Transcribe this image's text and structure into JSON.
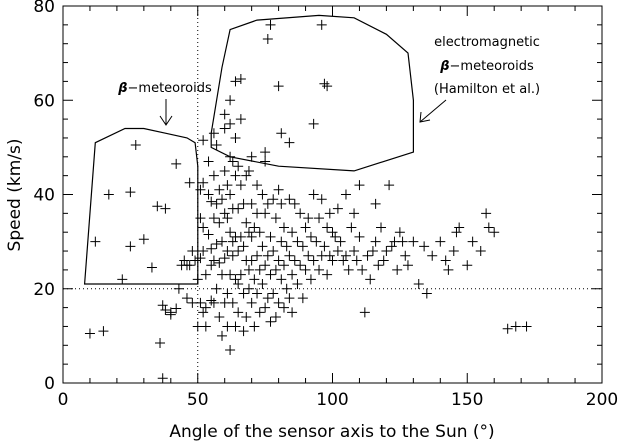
{
  "chart_data": {
    "type": "scatter",
    "xlabel": "Angle of the sensor axis to the Sun (°)",
    "ylabel": "Speed (km/s)",
    "xlim": [
      0,
      200
    ],
    "ylim": [
      0,
      80
    ],
    "xticks": [
      "0",
      "50",
      "100",
      "150",
      "200"
    ],
    "yticks": [
      "0",
      "20",
      "40",
      "60",
      "80"
    ],
    "grid": false,
    "reference_lines": {
      "x": 50,
      "y": 20
    },
    "annotations": {
      "beta_meteoroids": {
        "beta": "β",
        "text": "−meteoroids"
      },
      "em_line1": "electromagnetic",
      "em_line2_beta": "β",
      "em_line2": "−meteoroids",
      "em_line3": "(Hamilton et al.)"
    },
    "regions": [
      {
        "name": "beta-meteoroids",
        "polygon": [
          [
            8,
            21
          ],
          [
            12,
            51
          ],
          [
            23,
            54
          ],
          [
            30,
            54
          ],
          [
            38,
            53
          ],
          [
            46,
            52
          ],
          [
            49,
            51
          ],
          [
            50,
            46
          ],
          [
            50,
            21
          ]
        ]
      },
      {
        "name": "electromagnetic-beta-meteoroids",
        "polygon": [
          [
            55,
            53
          ],
          [
            59,
            67
          ],
          [
            62,
            75
          ],
          [
            72,
            77
          ],
          [
            95,
            78
          ],
          [
            108,
            77.5
          ],
          [
            120,
            74
          ],
          [
            128,
            70
          ],
          [
            130,
            60
          ],
          [
            130,
            49
          ],
          [
            108,
            45
          ],
          [
            80,
            46
          ],
          [
            62,
            48
          ],
          [
            55,
            50
          ]
        ]
      }
    ],
    "series": [
      {
        "x": [
          10,
          12,
          15,
          17,
          22,
          25,
          25,
          27,
          30,
          33,
          35,
          36,
          37,
          37,
          38,
          38,
          40,
          40,
          42,
          42,
          43,
          44,
          45,
          46,
          46,
          47,
          47,
          48,
          48,
          49,
          50,
          50,
          51,
          51,
          51,
          51,
          52,
          52,
          52,
          52,
          53,
          53,
          53,
          54,
          54,
          54,
          55,
          55,
          55,
          55,
          56,
          56,
          56,
          56,
          57,
          57,
          57,
          57,
          58,
          58,
          58,
          58,
          59,
          59,
          59,
          59,
          60,
          60,
          60,
          60,
          60,
          61,
          61,
          61,
          61,
          61,
          62,
          62,
          62,
          62,
          62,
          63,
          63,
          63,
          63,
          63,
          64,
          64,
          64,
          64,
          64,
          65,
          65,
          65,
          65,
          65,
          66,
          66,
          66,
          66,
          67,
          67,
          67,
          67,
          68,
          68,
          68,
          68,
          69,
          69,
          69,
          69,
          70,
          70,
          70,
          70,
          70,
          71,
          71,
          71,
          72,
          72,
          72,
          72,
          73,
          73,
          73,
          74,
          74,
          74,
          75,
          75,
          75,
          75,
          76,
          76,
          76,
          77,
          77,
          77,
          78,
          78,
          78,
          79,
          79,
          79,
          80,
          80,
          80,
          81,
          81,
          81,
          82,
          82,
          82,
          83,
          83,
          84,
          84,
          84,
          85,
          85,
          85,
          86,
          86,
          87,
          87,
          88,
          88,
          89,
          89,
          90,
          90,
          91,
          91,
          92,
          92,
          93,
          93,
          94,
          95,
          95,
          96,
          96,
          97,
          98,
          98,
          99,
          99,
          100,
          100,
          101,
          102,
          102,
          103,
          104,
          105,
          105,
          106,
          107,
          108,
          108,
          109,
          110,
          110,
          111,
          112,
          113,
          114,
          115,
          116,
          116,
          117,
          118,
          119,
          120,
          121,
          122,
          123,
          124,
          125,
          126,
          127,
          128,
          130,
          132,
          134,
          135,
          137,
          140,
          142,
          143,
          145,
          146,
          147,
          150,
          152,
          155,
          157,
          158,
          160,
          165,
          168,
          172,
          52,
          56,
          60,
          62,
          64,
          66,
          76,
          77,
          80,
          96,
          97,
          98,
          62,
          64,
          75,
          81,
          84,
          93
        ],
        "y": [
          10.5,
          30,
          11,
          40,
          22,
          29,
          40.5,
          50.5,
          30.5,
          24.5,
          37.5,
          8.5,
          1,
          16.5,
          15.5,
          37,
          15,
          14.5,
          46.5,
          15.8,
          20,
          25,
          26,
          25,
          18,
          25,
          42.5,
          17,
          28,
          26,
          12,
          22,
          17,
          26.5,
          35,
          41,
          28,
          33,
          42.5,
          15,
          12,
          16,
          23,
          31.5,
          40,
          47,
          25,
          28.5,
          17.5,
          38.5,
          17,
          26,
          35,
          44,
          20,
          29.5,
          38,
          50.5,
          14,
          25.5,
          34,
          41,
          10,
          23,
          30,
          39,
          17,
          26.5,
          36,
          45,
          54,
          12,
          19,
          28,
          35,
          42,
          7,
          23,
          32,
          40,
          55,
          17,
          27,
          30,
          37,
          47,
          22,
          31,
          44,
          52,
          12,
          21,
          28,
          37,
          46,
          15,
          23,
          31,
          42,
          56,
          11,
          19,
          29,
          38,
          14,
          26,
          34,
          44,
          20,
          24,
          32,
          45,
          17,
          26,
          31,
          38,
          48,
          12,
          22,
          33,
          19,
          27,
          36,
          42,
          15,
          24,
          32,
          21,
          29,
          40,
          16,
          25,
          36,
          47,
          18,
          27,
          38,
          13,
          23,
          31,
          19,
          28,
          39,
          14,
          24,
          35,
          17,
          26,
          41,
          22,
          30,
          38,
          16,
          25,
          33,
          20,
          29,
          18,
          27,
          39,
          15,
          23,
          32,
          26,
          38,
          21,
          30,
          25,
          36,
          18,
          29,
          24,
          33,
          27,
          35,
          22,
          31,
          26,
          40,
          30,
          24,
          35,
          27,
          39,
          29,
          23,
          33,
          27,
          36,
          26,
          32,
          31,
          37,
          28,
          30,
          26,
          27,
          40,
          24,
          33,
          28,
          36,
          26,
          31,
          42,
          24,
          15,
          27,
          22,
          28,
          30,
          38,
          25,
          33,
          26,
          28,
          42,
          29,
          30,
          24,
          32,
          30,
          27,
          25,
          30,
          21,
          29,
          19,
          27,
          30,
          26,
          24,
          28,
          32,
          33,
          25,
          30,
          28,
          36,
          33,
          32,
          11.5,
          12,
          12,
          51.5,
          53,
          57,
          60,
          64,
          64.5,
          73,
          76,
          63,
          76,
          63.5,
          63,
          48,
          52,
          49,
          53,
          51,
          55
        ]
      }
    ]
  }
}
